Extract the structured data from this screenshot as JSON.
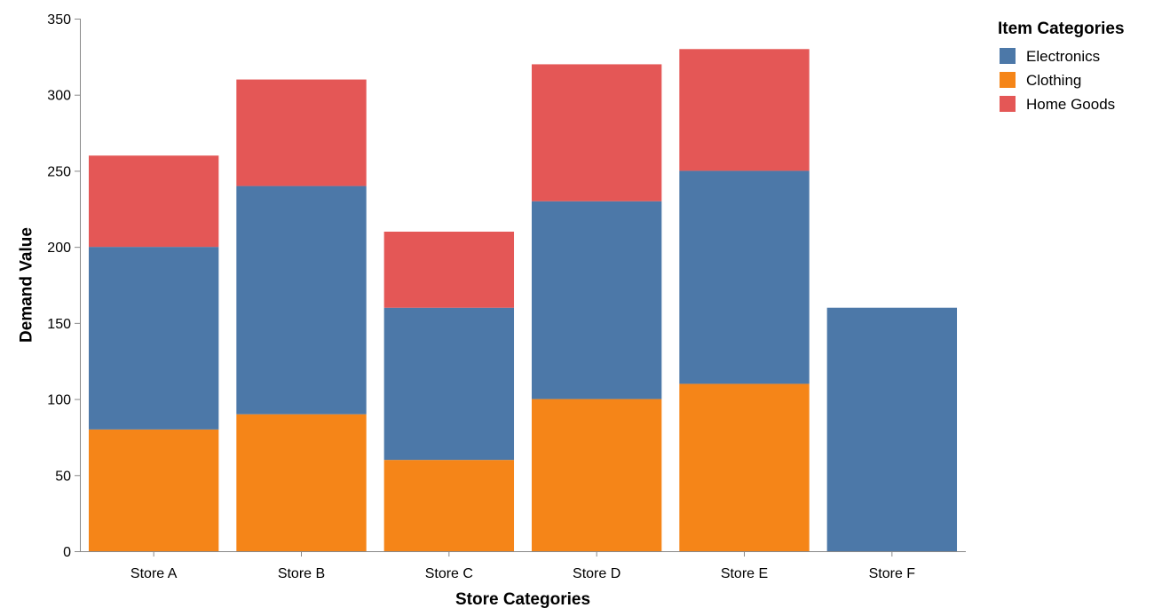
{
  "chart_data": {
    "type": "bar",
    "stacked": true,
    "categories": [
      "Store A",
      "Store B",
      "Store C",
      "Store D",
      "Store E",
      "Store F"
    ],
    "series": [
      {
        "name": "Clothing",
        "color": "#f58518",
        "values": [
          80,
          90,
          60,
          100,
          110,
          0
        ]
      },
      {
        "name": "Electronics",
        "color": "#4c78a8",
        "values": [
          120,
          150,
          100,
          130,
          140,
          160
        ]
      },
      {
        "name": "Home Goods",
        "color": "#e45756",
        "values": [
          60,
          70,
          50,
          90,
          80,
          0
        ]
      }
    ],
    "xlabel": "Store Categories",
    "ylabel": "Demand Value",
    "ylim": [
      0,
      350
    ],
    "yticks": [
      0,
      50,
      100,
      150,
      200,
      250,
      300,
      350
    ],
    "grid": false,
    "legend": {
      "title": "Item Categories",
      "position": "top-right",
      "entries": [
        {
          "label": "Electronics",
          "color": "#4c78a8"
        },
        {
          "label": "Clothing",
          "color": "#f58518"
        },
        {
          "label": "Home Goods",
          "color": "#e45756"
        }
      ]
    }
  }
}
